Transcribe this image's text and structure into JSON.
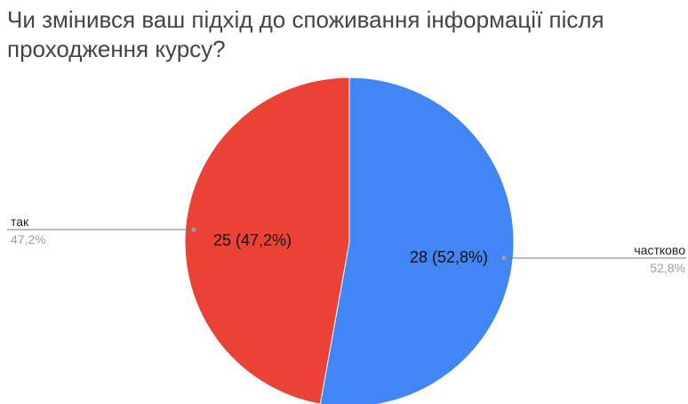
{
  "chart_data": {
    "type": "pie",
    "title": "Чи змінився ваш підхід до споживання інформації після проходження курсу?",
    "slices": [
      {
        "label": "частково",
        "value": 28,
        "percent_text": "52,8%",
        "inner_text": "28 (52,8%)",
        "color": "#4285f4"
      },
      {
        "label": "так",
        "value": 25,
        "percent_text": "47,2%",
        "inner_text": "25 (47,2%)",
        "color": "#ea4335"
      }
    ]
  }
}
